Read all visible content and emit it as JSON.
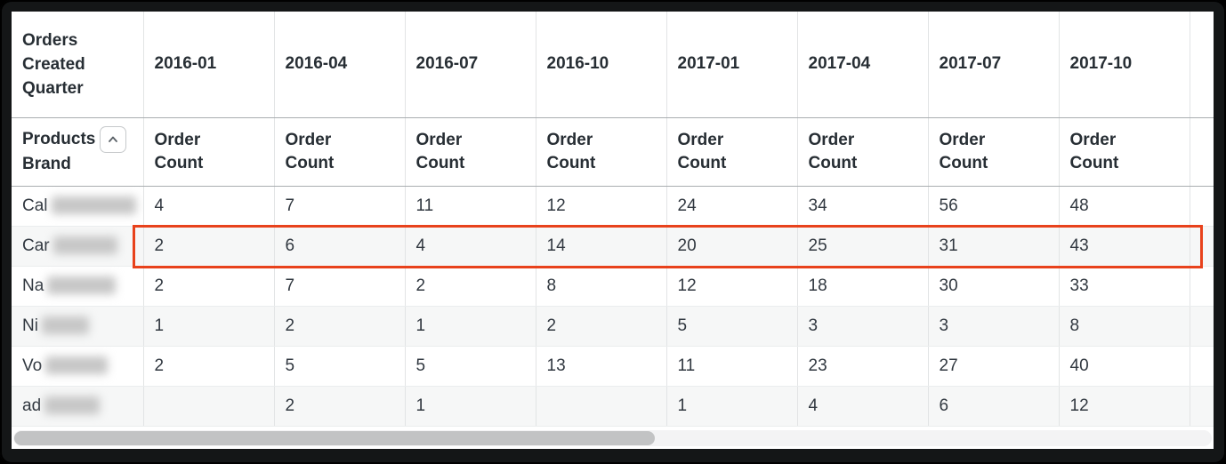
{
  "table": {
    "corner_header": "Orders Created Quarter",
    "row_dimension_line1": "Products",
    "row_dimension_line2": "Brand",
    "measure_label": "Order Count",
    "quarters": [
      "2016-01",
      "2016-04",
      "2016-07",
      "2016-10",
      "2017-01",
      "2017-04",
      "2017-07",
      "2017-10"
    ],
    "rows": [
      {
        "brand_prefix": "Cal",
        "brand_redacted": true,
        "blur_width": 95,
        "highlighted": false,
        "values": [
          "4",
          "7",
          "11",
          "12",
          "24",
          "34",
          "56",
          "48"
        ]
      },
      {
        "brand_prefix": "Car",
        "brand_redacted": true,
        "blur_width": 72,
        "highlighted": true,
        "values": [
          "2",
          "6",
          "4",
          "14",
          "20",
          "25",
          "31",
          "43"
        ]
      },
      {
        "brand_prefix": "Na",
        "brand_redacted": true,
        "blur_width": 77,
        "highlighted": false,
        "values": [
          "2",
          "7",
          "2",
          "8",
          "12",
          "18",
          "30",
          "33"
        ]
      },
      {
        "brand_prefix": "Ni",
        "brand_redacted": true,
        "blur_width": 53,
        "highlighted": false,
        "values": [
          "1",
          "2",
          "1",
          "2",
          "5",
          "3",
          "3",
          "8"
        ]
      },
      {
        "brand_prefix": "Vo",
        "brand_redacted": true,
        "blur_width": 70,
        "highlighted": false,
        "values": [
          "2",
          "5",
          "5",
          "13",
          "11",
          "23",
          "27",
          "40"
        ]
      },
      {
        "brand_prefix": "ad",
        "brand_redacted": true,
        "blur_width": 62,
        "highlighted": false,
        "values": [
          "",
          "2",
          "1",
          "",
          "1",
          "4",
          "6",
          "12"
        ]
      }
    ]
  },
  "icons": {
    "collapse_button": "chevron-up"
  },
  "annotation": {
    "highlighted_row_prefix": "Car",
    "highlight_color": "#e8421c"
  },
  "scrollbar": {
    "orientation": "horizontal",
    "thumb_width_pct": 53,
    "thumb_position": "left"
  },
  "colors": {
    "header_text": "#272e34",
    "body_text": "#313840",
    "zebra_row": "#f6f7f7",
    "gridline": "#e2e4e5",
    "header_border": "#a9adb0",
    "frame": "#141617",
    "scroll_thumb": "#c2c3c4"
  }
}
